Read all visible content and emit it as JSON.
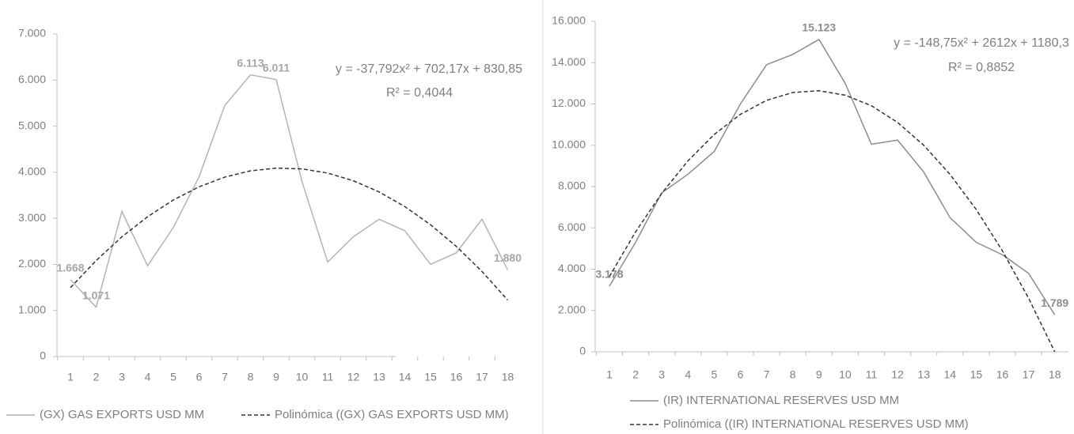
{
  "chart_data": [
    {
      "type": "line",
      "categories": [
        "1",
        "2",
        "3",
        "4",
        "5",
        "6",
        "7",
        "8",
        "9",
        "10",
        "11",
        "12",
        "13",
        "14",
        "15",
        "16",
        "17",
        "18"
      ],
      "ylim": [
        0,
        7000
      ],
      "yticks": [
        0,
        {
          "value": 1000,
          "label": "1.000"
        },
        {
          "value": 2000,
          "label": "2.000"
        },
        {
          "value": 3000,
          "label": "3.000"
        },
        {
          "value": 4000,
          "label": "4.000"
        },
        {
          "value": 5000,
          "label": "5.000"
        },
        {
          "value": 6000,
          "label": "6.000"
        },
        {
          "value": 7000,
          "label": "7.000"
        }
      ],
      "annotations": [
        "y = -37,792x² + 702,17x + 830,85",
        "R² = 0,4044"
      ],
      "legend": "bottom",
      "series": [
        {
          "name": "(GX) GAS EXPORTS USD MM",
          "color": "#b4b4b4",
          "style": "solid",
          "values": [
            1668,
            1071,
            3150,
            1970,
            2800,
            3900,
            5450,
            6113,
            6011,
            3800,
            2050,
            2600,
            2980,
            2730,
            2000,
            2250,
            2980,
            1880
          ],
          "value_labels": [
            "1.668",
            "1.071",
            null,
            null,
            null,
            null,
            null,
            "6.113",
            "6.011",
            null,
            null,
            null,
            null,
            null,
            null,
            null,
            null,
            "1.880"
          ]
        },
        {
          "name": "Polinómica ((GX) GAS EXPORTS USD MM)",
          "color": "#333333",
          "style": "dashed",
          "values": [
            1495,
            2084,
            2597,
            3035,
            3397,
            3683,
            3894,
            4030,
            4089,
            4073,
            3982,
            3815,
            3572,
            3254,
            2860,
            2391,
            1846,
            1225
          ]
        }
      ]
    },
    {
      "type": "line",
      "categories": [
        "1",
        "2",
        "3",
        "4",
        "5",
        "6",
        "7",
        "8",
        "9",
        "10",
        "11",
        "12",
        "13",
        "14",
        "15",
        "16",
        "17",
        "18"
      ],
      "ylim": [
        0,
        16000
      ],
      "yticks": [
        0,
        {
          "value": 2000,
          "label": "2.000"
        },
        {
          "value": 4000,
          "label": "4.000"
        },
        {
          "value": 6000,
          "label": "6.000"
        },
        {
          "value": 8000,
          "label": "8.000"
        },
        {
          "value": 10000,
          "label": "10.000"
        },
        {
          "value": 12000,
          "label": "12.000"
        },
        {
          "value": 14000,
          "label": "14.000"
        },
        {
          "value": 16000,
          "label": "16.000"
        }
      ],
      "annotations": [
        "y = -148,75x² + 2612x + 1180,3",
        "R² = 0,8852"
      ],
      "legend": "bottom",
      "series": [
        {
          "name": "(IR) INTERNATIONAL RESERVES USD MM",
          "color": "#8c8c8c",
          "style": "solid",
          "values": [
            3178,
            5300,
            7700,
            8600,
            9700,
            12000,
            13900,
            14400,
            15123,
            13000,
            10050,
            10250,
            8700,
            6500,
            5300,
            4700,
            3800,
            1789
          ],
          "value_labels": [
            "3.178",
            null,
            null,
            null,
            null,
            null,
            null,
            null,
            "15.123",
            null,
            null,
            null,
            null,
            null,
            null,
            null,
            null,
            "1.789"
          ]
        },
        {
          "name": "Polinómica ((IR) INTERNATIONAL RESERVES USD MM)",
          "color": "#333333",
          "style": "dashed",
          "values": [
            3644,
            5809,
            7678,
            9248,
            10522,
            11497,
            12176,
            12556,
            12640,
            12425,
            11914,
            11104,
            9998,
            8593,
            6892,
            4892,
            2596,
            1
          ]
        }
      ]
    }
  ]
}
